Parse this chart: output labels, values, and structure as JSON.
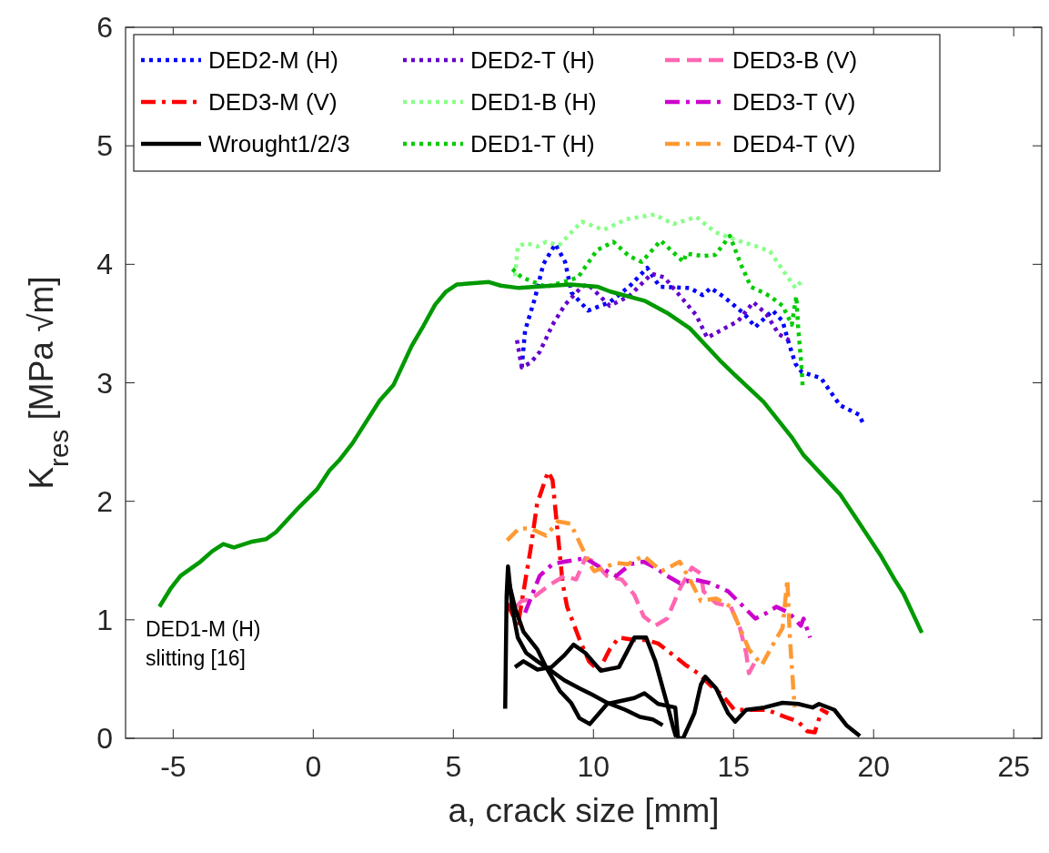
{
  "chart_data": {
    "type": "line",
    "xlabel": "a, crack size [mm]",
    "ylabel": "K$_{res}$ [MPa √m]",
    "xlim": [
      -6.7,
      26
    ],
    "xticks": [
      -5,
      0,
      5,
      10,
      15,
      20,
      25
    ],
    "ylim": [
      0,
      6
    ],
    "yticks": [
      0,
      1,
      2,
      3,
      4,
      5,
      6
    ],
    "grid": false,
    "legend": "top left",
    "annotations": [
      "DED1-M (H)\nslitting [16]"
    ],
    "series": [
      {
        "name": "DED2-M (H)",
        "color": "#0000ff",
        "line_style": "dotted",
        "x": [
          7.44,
          7.56,
          7.92,
          8.21,
          8.64,
          8.99,
          9.22,
          9.81,
          10.58,
          11.27,
          11.92,
          12.37,
          13.44,
          13.9,
          14.19,
          14.68,
          15.39,
          15.78,
          16.4,
          16.75,
          16.98,
          17.21,
          17.44,
          18.12,
          18.8,
          19.48,
          19.64
        ],
        "values": [
          3.13,
          3.44,
          3.72,
          4.0,
          4.17,
          4.02,
          3.76,
          3.61,
          3.68,
          3.81,
          3.97,
          3.81,
          3.8,
          3.74,
          3.8,
          3.72,
          3.58,
          3.47,
          3.61,
          3.52,
          3.33,
          3.16,
          3.09,
          3.04,
          2.81,
          2.73,
          2.65
        ]
      },
      {
        "name": "DED3-M (V)",
        "color": "#ff0000",
        "line_style": "dashdot",
        "x": [
          6.92,
          7.3,
          7.76,
          7.99,
          8.38,
          8.54,
          8.73,
          8.9,
          9.06,
          9.51,
          9.84,
          10.19,
          10.58,
          10.91,
          11.46,
          11.88,
          12.31,
          12.86,
          13.28,
          13.73,
          14.16,
          14.58,
          15.03,
          15.68,
          16.2,
          16.85,
          17.31,
          17.63,
          17.9,
          18.15,
          18.38
        ],
        "values": [
          1.14,
          0.95,
          1.6,
          1.98,
          2.25,
          2.18,
          1.72,
          1.31,
          1.11,
          0.83,
          0.65,
          0.57,
          0.75,
          0.85,
          0.83,
          0.83,
          0.8,
          0.7,
          0.62,
          0.55,
          0.45,
          0.37,
          0.24,
          0.24,
          0.24,
          0.18,
          0.14,
          0.06,
          0.05,
          0.24,
          0.21
        ]
      },
      {
        "name": "Wrought1/2/3",
        "color": "#000000",
        "line_style": "solid",
        "x": [
          6.85,
          6.9,
          6.95,
          7.1,
          7.3,
          7.6,
          8.0,
          8.31,
          8.96,
          9.51,
          9.94,
          10.49,
          11.14,
          11.66,
          12.11,
          12.47
        ],
        "values": [
          0.25,
          1.2,
          1.45,
          1.1,
          0.85,
          0.72,
          0.65,
          0.6,
          0.49,
          0.42,
          0.37,
          0.3,
          0.24,
          0.18,
          0.16,
          0.11
        ]
      },
      {
        "name": "DED2-T (H)",
        "color": "#6600cc",
        "line_style": "dotted",
        "x": [
          7.27,
          7.44,
          7.76,
          8.08,
          8.54,
          8.99,
          9.58,
          9.81,
          10.58,
          11.27,
          12.08,
          12.53,
          13.21,
          13.67,
          14.06,
          14.68,
          15.16,
          15.71,
          16.17,
          16.62,
          16.98
        ],
        "values": [
          3.36,
          3.13,
          3.17,
          3.26,
          3.49,
          3.66,
          3.81,
          3.83,
          3.65,
          3.73,
          3.92,
          3.89,
          3.7,
          3.57,
          3.38,
          3.46,
          3.52,
          3.68,
          3.58,
          3.41,
          3.36
        ]
      },
      {
        "name": "DED1-B (H)",
        "color": "#88ff88",
        "line_style": "dotted",
        "x": [
          7.2,
          7.3,
          7.6,
          8.0,
          8.31,
          8.77,
          9.58,
          10.36,
          11.17,
          12.18,
          12.86,
          13.67,
          14.35,
          15.16,
          15.84,
          16.3,
          16.85,
          17.21,
          17.44
        ],
        "values": [
          3.9,
          4.15,
          4.18,
          4.15,
          4.19,
          4.16,
          4.36,
          4.29,
          4.38,
          4.42,
          4.34,
          4.4,
          4.27,
          4.2,
          4.15,
          4.11,
          3.92,
          3.8,
          3.86
        ]
      },
      {
        "name": "DED1-T (H)",
        "color": "#00cc00",
        "line_style": "dotted",
        "x": [
          7.11,
          7.44,
          8.31,
          9.06,
          9.45,
          10.13,
          10.71,
          11.27,
          11.72,
          12.4,
          12.99,
          13.21,
          13.31,
          13.9,
          14.35,
          14.87,
          15.26,
          15.62,
          16.07,
          16.3,
          16.75,
          17.08,
          17.24,
          17.31,
          17.44,
          17.47
        ],
        "values": [
          3.96,
          3.89,
          3.81,
          3.86,
          3.89,
          4.12,
          4.19,
          4.07,
          4.02,
          4.2,
          4.07,
          4.02,
          4.09,
          4.07,
          4.08,
          4.24,
          4.0,
          3.81,
          3.76,
          3.73,
          3.65,
          3.49,
          3.73,
          3.46,
          3.09,
          2.95
        ]
      },
      {
        "name": "DED3-B (V)",
        "color": "#ff66b2",
        "line_style": "dashed",
        "x": [
          7.24,
          7.44,
          7.76,
          8.41,
          8.96,
          9.38,
          9.71,
          10.03,
          10.49,
          11.01,
          11.46,
          11.79,
          12.21,
          12.63,
          13.08,
          13.51,
          13.83,
          13.93,
          14.38,
          14.9,
          15.23,
          15.45,
          15.55,
          15.78
        ],
        "values": [
          1.11,
          1.16,
          1.17,
          1.29,
          1.37,
          1.34,
          1.52,
          1.49,
          1.37,
          1.34,
          1.21,
          1.03,
          0.95,
          1.01,
          1.26,
          1.44,
          1.39,
          1.24,
          1.14,
          1.11,
          0.93,
          0.72,
          0.55,
          0.65
        ]
      },
      {
        "name": "DED3-T (V)",
        "color": "#cc00cc",
        "line_style": "dashdot",
        "x": [
          7.56,
          7.76,
          8.08,
          8.54,
          8.96,
          9.71,
          10.26,
          10.81,
          11.33,
          11.79,
          12.21,
          12.63,
          13.08,
          13.6,
          14.16,
          14.81,
          15.36,
          15.78,
          16.2,
          16.53,
          16.98,
          17.4,
          17.5,
          17.73
        ],
        "values": [
          1.06,
          1.18,
          1.37,
          1.47,
          1.49,
          1.52,
          1.44,
          1.37,
          1.47,
          1.49,
          1.44,
          1.37,
          1.31,
          1.34,
          1.31,
          1.24,
          1.11,
          1.01,
          1.06,
          1.11,
          1.06,
          0.95,
          1.01,
          0.85
        ]
      },
      {
        "name": "DED4-T (V)",
        "color": "#ff9933",
        "line_style": "dashdot",
        "x": [
          6.92,
          7.34,
          7.76,
          8.31,
          8.73,
          9.19,
          9.61,
          9.94,
          10.03,
          10.81,
          11.23,
          11.79,
          12.43,
          13.08,
          13.51,
          13.83,
          14.38,
          14.9,
          15.23,
          15.55,
          16.01,
          16.43,
          16.75,
          16.92,
          17.01,
          17.18
        ],
        "values": [
          1.67,
          1.77,
          1.77,
          1.71,
          1.83,
          1.81,
          1.6,
          1.44,
          1.41,
          1.48,
          1.47,
          1.54,
          1.41,
          1.49,
          1.31,
          1.16,
          1.18,
          1.11,
          0.93,
          0.75,
          0.62,
          0.8,
          0.93,
          1.34,
          0.85,
          0.26
        ]
      },
      {
        "color": "#000000",
        "line_style": "solid",
        "x": [
          7.2,
          7.5,
          8.0,
          8.5,
          8.96,
          9.29,
          9.71,
          10.26,
          10.91,
          11.46,
          11.88,
          12.21,
          12.63,
          12.86,
          12.95
        ],
        "values": [
          0.6,
          0.65,
          0.58,
          0.6,
          0.7,
          0.79,
          0.72,
          0.57,
          0.6,
          0.85,
          0.85,
          0.65,
          0.29,
          0.08,
          0.01
        ]
      },
      {
        "color": "#000000",
        "line_style": "solid",
        "x": [
          7.0,
          7.2,
          7.5,
          8.0,
          8.31,
          8.8,
          9.2,
          9.5,
          9.87,
          10.49,
          11.46,
          11.82,
          12.31,
          12.92,
          13.02,
          13.2,
          13.6,
          13.83,
          13.99,
          14.38,
          14.81,
          15.06,
          15.45,
          16.1,
          16.75,
          17.31,
          17.82,
          18.05,
          18.6,
          19.03,
          19.51
        ],
        "values": [
          1.3,
          1.1,
          0.9,
          0.75,
          0.6,
          0.4,
          0.3,
          0.17,
          0.12,
          0.29,
          0.34,
          0.38,
          0.29,
          0.26,
          0.0,
          0.0,
          0.21,
          0.45,
          0.52,
          0.42,
          0.21,
          0.14,
          0.24,
          0.26,
          0.3,
          0.29,
          0.26,
          0.29,
          0.24,
          0.11,
          0.02
        ]
      },
      {
        "color": "#009900",
        "line_style": "solid",
        "x": [
          -5.49,
          -5.1,
          -4.74,
          -4.03,
          -3.6,
          -3.21,
          -2.83,
          -2.18,
          -1.69,
          -1.33,
          -0.55,
          0.13,
          0.58,
          0.94,
          1.4,
          2.37,
          2.86,
          3.51,
          3.93,
          4.35,
          4.74,
          5.13,
          6.27,
          6.69,
          7.34,
          8.54,
          9.19,
          10.16,
          10.6,
          11.85,
          12.63,
          13.44,
          14.51,
          15.03,
          16.07,
          17.08,
          17.5,
          18.05,
          18.8,
          19.45,
          20.26,
          20.75,
          21.07,
          21.72
        ],
        "values": [
          1.11,
          1.26,
          1.37,
          1.49,
          1.58,
          1.64,
          1.61,
          1.66,
          1.68,
          1.74,
          1.94,
          2.1,
          2.26,
          2.35,
          2.49,
          2.85,
          2.98,
          3.31,
          3.48,
          3.66,
          3.77,
          3.83,
          3.85,
          3.82,
          3.8,
          3.82,
          3.83,
          3.81,
          3.77,
          3.69,
          3.59,
          3.46,
          3.19,
          3.07,
          2.84,
          2.54,
          2.39,
          2.25,
          2.06,
          1.83,
          1.54,
          1.34,
          1.22,
          0.89
        ]
      }
    ]
  }
}
